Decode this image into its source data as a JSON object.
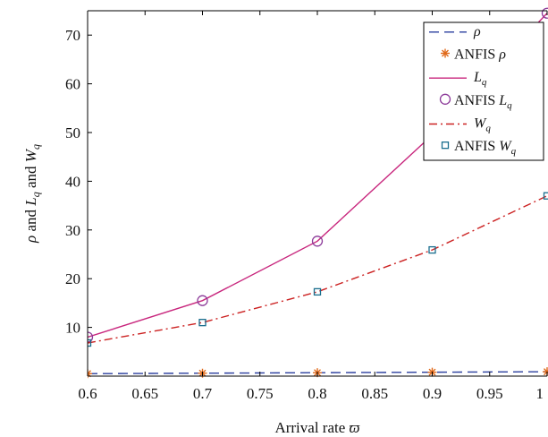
{
  "chart_data": {
    "type": "line",
    "xlabel_text": "Arrival rate ",
    "xlabel_symbol": "ϖ",
    "ylabel_parts": [
      "ρ",
      " and ",
      "L",
      "q",
      " and ",
      "W",
      "q"
    ],
    "xlim": [
      0.6,
      1.0
    ],
    "ylim": [
      0,
      75
    ],
    "x_ticks": [
      0.6,
      0.65,
      0.7,
      0.75,
      0.8,
      0.85,
      0.9,
      0.95,
      1.0
    ],
    "x_tick_labels": [
      "0.6",
      "0.65",
      "0.7",
      "0.75",
      "0.8",
      "0.85",
      "0.9",
      "0.95",
      "1"
    ],
    "y_ticks": [
      10,
      20,
      30,
      40,
      50,
      60,
      70
    ],
    "y_tick_labels": [
      "10",
      "20",
      "30",
      "40",
      "50",
      "60",
      "70"
    ],
    "grid": false,
    "legend_position": "top-right",
    "series": [
      {
        "key": "rho",
        "legend": [
          "ρ"
        ],
        "style": "dashed",
        "marker": "none",
        "color": "#2b3f9e",
        "x": [
          0.6,
          0.7,
          0.8,
          0.9,
          1.0
        ],
        "values": [
          0.5,
          0.6,
          0.7,
          0.8,
          0.9
        ]
      },
      {
        "key": "anfis_rho",
        "legend": [
          "ANFIS ",
          "ρ"
        ],
        "style": "none",
        "marker": "star",
        "color": "#e06a1b",
        "x": [
          0.6,
          0.7,
          0.8,
          0.9,
          1.0
        ],
        "values": [
          0.5,
          0.6,
          0.7,
          0.8,
          0.9
        ]
      },
      {
        "key": "lq",
        "legend": [
          "L",
          "q"
        ],
        "style": "solid",
        "marker": "none",
        "color": "#c8267d",
        "x": [
          0.6,
          0.7,
          0.8,
          0.9,
          1.0
        ],
        "values": [
          8.0,
          15.5,
          27.7,
          49.5,
          74.5
        ]
      },
      {
        "key": "anfis_lq",
        "legend": [
          "ANFIS ",
          "L",
          "q"
        ],
        "style": "none",
        "marker": "circle",
        "color": "#8c3a99",
        "x": [
          0.6,
          0.7,
          0.8,
          0.9,
          1.0
        ],
        "values": [
          8.0,
          15.5,
          27.7,
          49.5,
          74.5
        ]
      },
      {
        "key": "wq",
        "legend": [
          "W",
          "q"
        ],
        "style": "dashdot",
        "marker": "none",
        "color": "#cc2222",
        "x": [
          0.6,
          0.7,
          0.8,
          0.9,
          1.0
        ],
        "values": [
          6.8,
          11.0,
          17.3,
          25.9,
          37.0
        ]
      },
      {
        "key": "anfis_wq",
        "legend": [
          "ANFIS ",
          "W",
          "q"
        ],
        "style": "none",
        "marker": "square",
        "color": "#1a6e8e",
        "x": [
          0.6,
          0.7,
          0.8,
          0.9,
          1.0
        ],
        "values": [
          6.8,
          11.0,
          17.3,
          25.9,
          37.0
        ]
      }
    ]
  }
}
